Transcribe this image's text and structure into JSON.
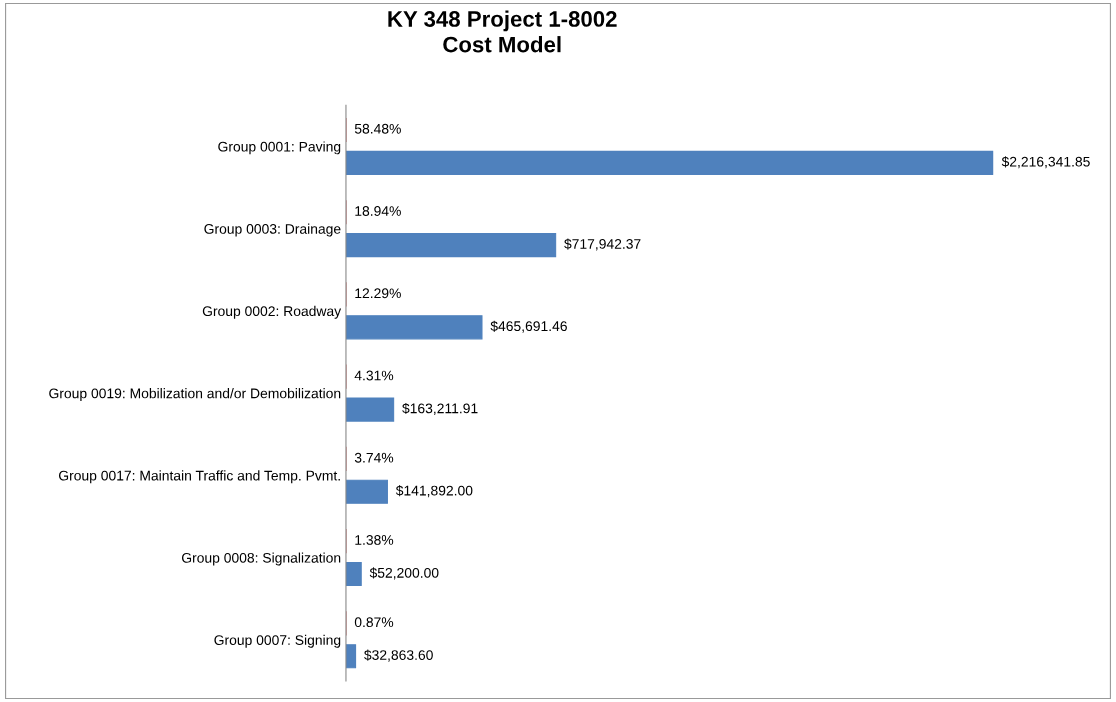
{
  "chart_data": {
    "type": "bar",
    "orientation": "horizontal",
    "title": "KY 348 Project 1-8002\nCost Model",
    "categories": [
      "Group 0001: Paving",
      "Group 0003: Drainage",
      "Group 0002: Roadway",
      "Group 0019: Mobilization and/or Demobilization",
      "Group 0017: Maintain Traffic and Temp. Pvmt.",
      "Group 0008: Signalization",
      "Group 0007: Signing"
    ],
    "series": [
      {
        "color": "#c0504d",
        "values": [
          58.48,
          18.94,
          12.29,
          4.31,
          3.74,
          1.38,
          0.87
        ],
        "value_labels": [
          "58.48%",
          "18.94%",
          "12.29%",
          "4.31%",
          "3.74%",
          "1.38%",
          "0.87%"
        ]
      },
      {
        "color": "#4f81bd",
        "values": [
          2216341.85,
          717942.37,
          465691.46,
          163211.91,
          141892.0,
          52200.0,
          32863.6
        ],
        "value_labels": [
          "$2,216,341.85",
          "$717,942.37",
          "$465,691.46",
          "$163,211.91",
          "$141,892.00",
          "$52,200.00",
          "$32,863.60"
        ]
      }
    ],
    "tick_labels": "y",
    "grid": false,
    "legend": false
  }
}
